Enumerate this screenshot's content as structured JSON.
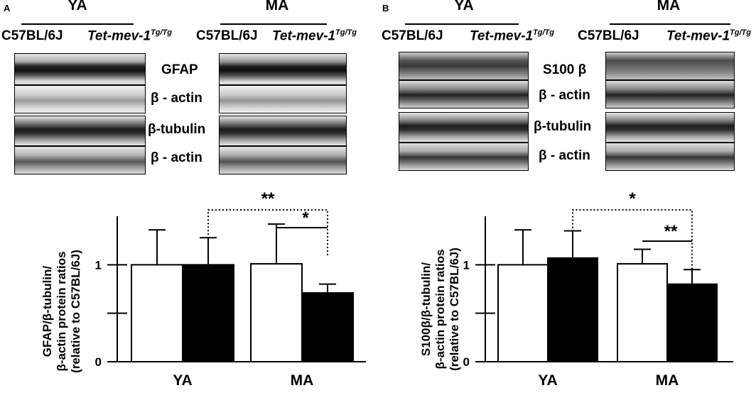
{
  "panels": [
    {
      "letter": "A",
      "group_ya": "YA",
      "group_ma": "MA",
      "strain_wt": "C57BL/6J",
      "strain_tg_main": "Tet-mev-1",
      "strain_tg_sup": "Tg/Tg",
      "blot_labels": [
        "GFAP",
        "β - actin",
        "β-tubulin",
        "β - actin"
      ],
      "y_axis_title": [
        "GFAP/β-tubulin/",
        "β-actin protein ratios",
        "(relative to C57BL/6J)"
      ],
      "y_ticks": [
        "1",
        "0"
      ],
      "x_categories": [
        "YA",
        "MA"
      ],
      "significance": [
        "**",
        "*"
      ]
    },
    {
      "letter": "B",
      "group_ya": "YA",
      "group_ma": "MA",
      "strain_wt": "C57BL/6J",
      "strain_tg_main": "Tet-mev-1",
      "strain_tg_sup": "Tg/Tg",
      "blot_labels": [
        "S100 β",
        "β - actin",
        "β-tubulin",
        "β - actin"
      ],
      "y_axis_title": [
        "S100β/β-tubulin/",
        "β-actin protein ratios",
        "(relative to C57BL/6J)"
      ],
      "y_ticks": [
        "1",
        "0"
      ],
      "x_categories": [
        "YA",
        "MA"
      ],
      "significance": [
        "*",
        "**"
      ]
    }
  ],
  "chart_data": [
    {
      "type": "bar",
      "categories": [
        "YA",
        "MA"
      ],
      "series": [
        {
          "name": "C57BL/6J",
          "color": "#ffffff",
          "values": [
            1.0,
            1.01
          ],
          "errors": [
            0.36,
            0.41
          ]
        },
        {
          "name": "Tet-mev-1 Tg/Tg",
          "color": "#000000",
          "values": [
            1.0,
            0.71
          ],
          "errors": [
            0.28,
            0.09
          ]
        }
      ],
      "ylabel": "GFAP/β-tubulin/β-actin protein ratios (relative to C57BL/6J)",
      "ylim": [
        0,
        1.5
      ],
      "yticks": [
        0,
        0.5,
        1
      ],
      "significance": [
        {
          "label": "**",
          "from": "YA Tet-mev-1 Tg/Tg",
          "to": "MA Tet-mev-1 Tg/Tg"
        },
        {
          "label": "*",
          "from": "MA C57BL/6J",
          "to": "MA Tet-mev-1 Tg/Tg"
        }
      ]
    },
    {
      "type": "bar",
      "categories": [
        "YA",
        "MA"
      ],
      "series": [
        {
          "name": "C57BL/6J",
          "color": "#ffffff",
          "values": [
            1.0,
            1.01
          ],
          "errors": [
            0.36,
            0.15
          ]
        },
        {
          "name": "Tet-mev-1 Tg/Tg",
          "color": "#000000",
          "values": [
            1.07,
            0.8
          ],
          "errors": [
            0.28,
            0.15
          ]
        }
      ],
      "ylabel": "S100β/β-tubulin/β-actin protein ratios (relative to C57BL/6J)",
      "ylim": [
        0,
        1.5
      ],
      "yticks": [
        0,
        0.5,
        1
      ],
      "significance": [
        {
          "label": "*",
          "from": "YA Tet-mev-1 Tg/Tg",
          "to": "MA Tet-mev-1 Tg/Tg"
        },
        {
          "label": "**",
          "from": "MA C57BL/6J",
          "to": "MA Tet-mev-1 Tg/Tg"
        }
      ]
    }
  ]
}
